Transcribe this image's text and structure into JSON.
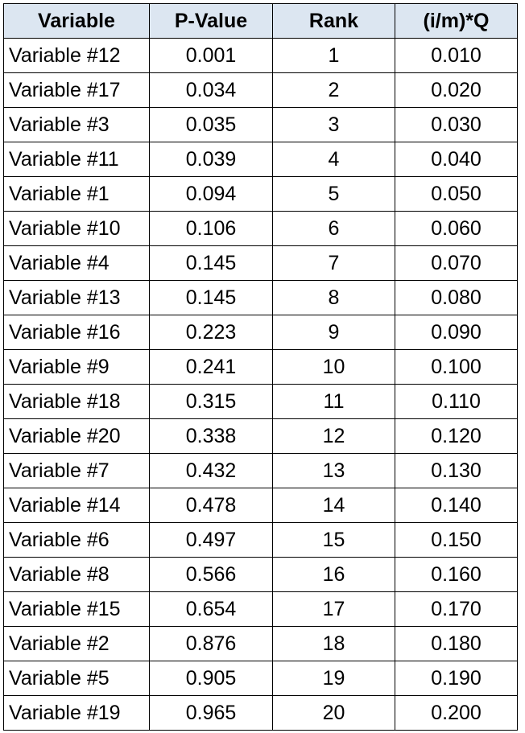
{
  "table": {
    "header": [
      "Variable",
      "P-Value",
      "Rank",
      "(i/m)*Q"
    ],
    "rows": [
      [
        "Variable #12",
        "0.001",
        "1",
        "0.010"
      ],
      [
        "Variable #17",
        "0.034",
        "2",
        "0.020"
      ],
      [
        "Variable #3",
        "0.035",
        "3",
        "0.030"
      ],
      [
        "Variable #11",
        "0.039",
        "4",
        "0.040"
      ],
      [
        "Variable #1",
        "0.094",
        "5",
        "0.050"
      ],
      [
        "Variable #10",
        "0.106",
        "6",
        "0.060"
      ],
      [
        "Variable #4",
        "0.145",
        "7",
        "0.070"
      ],
      [
        "Variable #13",
        "0.145",
        "8",
        "0.080"
      ],
      [
        "Variable #16",
        "0.223",
        "9",
        "0.090"
      ],
      [
        "Variable #9",
        "0.241",
        "10",
        "0.100"
      ],
      [
        "Variable #18",
        "0.315",
        "11",
        "0.110"
      ],
      [
        "Variable #20",
        "0.338",
        "12",
        "0.120"
      ],
      [
        "Variable #7",
        "0.432",
        "13",
        "0.130"
      ],
      [
        "Variable #14",
        "0.478",
        "14",
        "0.140"
      ],
      [
        "Variable #6",
        "0.497",
        "15",
        "0.150"
      ],
      [
        "Variable #8",
        "0.566",
        "16",
        "0.160"
      ],
      [
        "Variable #15",
        "0.654",
        "17",
        "0.170"
      ],
      [
        "Variable #2",
        "0.876",
        "18",
        "0.180"
      ],
      [
        "Variable #5",
        "0.905",
        "19",
        "0.190"
      ],
      [
        "Variable #19",
        "0.965",
        "20",
        "0.200"
      ]
    ]
  }
}
